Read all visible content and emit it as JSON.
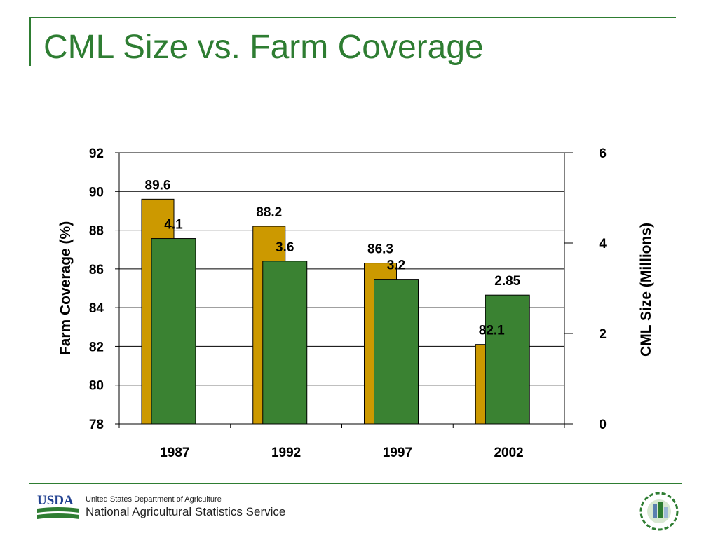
{
  "slide": {
    "title": "CML Size vs. Farm Coverage",
    "accent_color": "#2E7D32",
    "title_color": "#2E7D32"
  },
  "footer": {
    "agency_line1": "United States Department of Agriculture",
    "agency_line2": "National Agricultural Statistics Service",
    "logo_icon": "usda-logo-icon",
    "seal_icon": "nass-seal-icon",
    "logo_text": "USDA"
  },
  "chart_data": {
    "type": "bar",
    "title": "",
    "categories": [
      "1987",
      "1992",
      "1997",
      "2002"
    ],
    "series": [
      {
        "values": [
          89.6,
          88.2,
          86.3,
          82.1
        ],
        "labels": [
          "89.6",
          "88.2",
          "86.3",
          "82.1"
        ],
        "color": "#CC9900",
        "axis": "left"
      },
      {
        "values": [
          4.1,
          3.6,
          3.2,
          2.85
        ],
        "labels": [
          "4.1",
          "3.6",
          "3.2",
          "2.85"
        ],
        "color": "#3A8232",
        "axis": "right"
      }
    ],
    "y_left": {
      "label": "Farm Coverage (%)",
      "lim": [
        78,
        92
      ],
      "ticks": [
        "78",
        "80",
        "82",
        "84",
        "86",
        "88",
        "90",
        "92"
      ]
    },
    "y_right": {
      "label": "CML Size (Millions)",
      "lim": [
        0,
        6
      ],
      "ticks": [
        "0",
        "2",
        "4",
        "6"
      ]
    },
    "grid": true,
    "legend": "none"
  }
}
